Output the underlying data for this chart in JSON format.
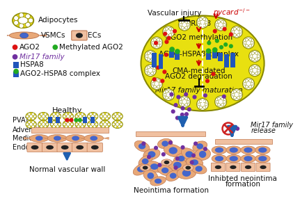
{
  "bg_color": "#ffffff",
  "adipocyte_fill": "#e8d820",
  "adipocyte_border": "#888800",
  "oval_fill": "#e8e010",
  "oval_border": "#888800",
  "red_dot": "#dd1111",
  "green_dot": "#22aa22",
  "purple_dot": "#7030a0",
  "blue_rect": "#2055bb",
  "salmon": "#e8a878",
  "salmon_dark": "#c07850",
  "salmon_light": "#f0c0a0",
  "blue_cell_nuc": "#4466cc",
  "dark_nuc": "#222222",
  "arrow_blue": "#2060b0",
  "arrow_red": "#cc0000",
  "text_color": "#111111",
  "legend": {
    "adipocytes": "Adipocytes",
    "vsmcs": "VSMCs",
    "ecs": "ECs",
    "ago2": "AGO2",
    "methyl_ago2": "Methylated AGO2",
    "mir17": "Mir17 family",
    "hspa8": "HSPA8",
    "complex": "AGO2-HSPA8 complex"
  },
  "labels": {
    "vascular_injury": "Vascular injury",
    "pycard": "pycard",
    "prmt8": "PRMT8",
    "ago2_meth": "AGO2 methylation",
    "ago2_hspa8": "AGO2-HSPA8 complex",
    "cma": "CMA-meidated",
    "ago2_deg": "AGO2 degradation",
    "mir17_mat": "Mir17 family maturation",
    "healthy": "Healthy",
    "pvat": "PVAT",
    "adventitia": "Adventitia",
    "medium": "Medium",
    "endothelium": "Endothelium",
    "normal": "Normal vascular wall",
    "neointima": "Neointima formation",
    "inhibited": "Inhibted neointima",
    "inhibited2": "formation",
    "mir17_release": "Mir17 family",
    "mir17_release2": "release"
  }
}
